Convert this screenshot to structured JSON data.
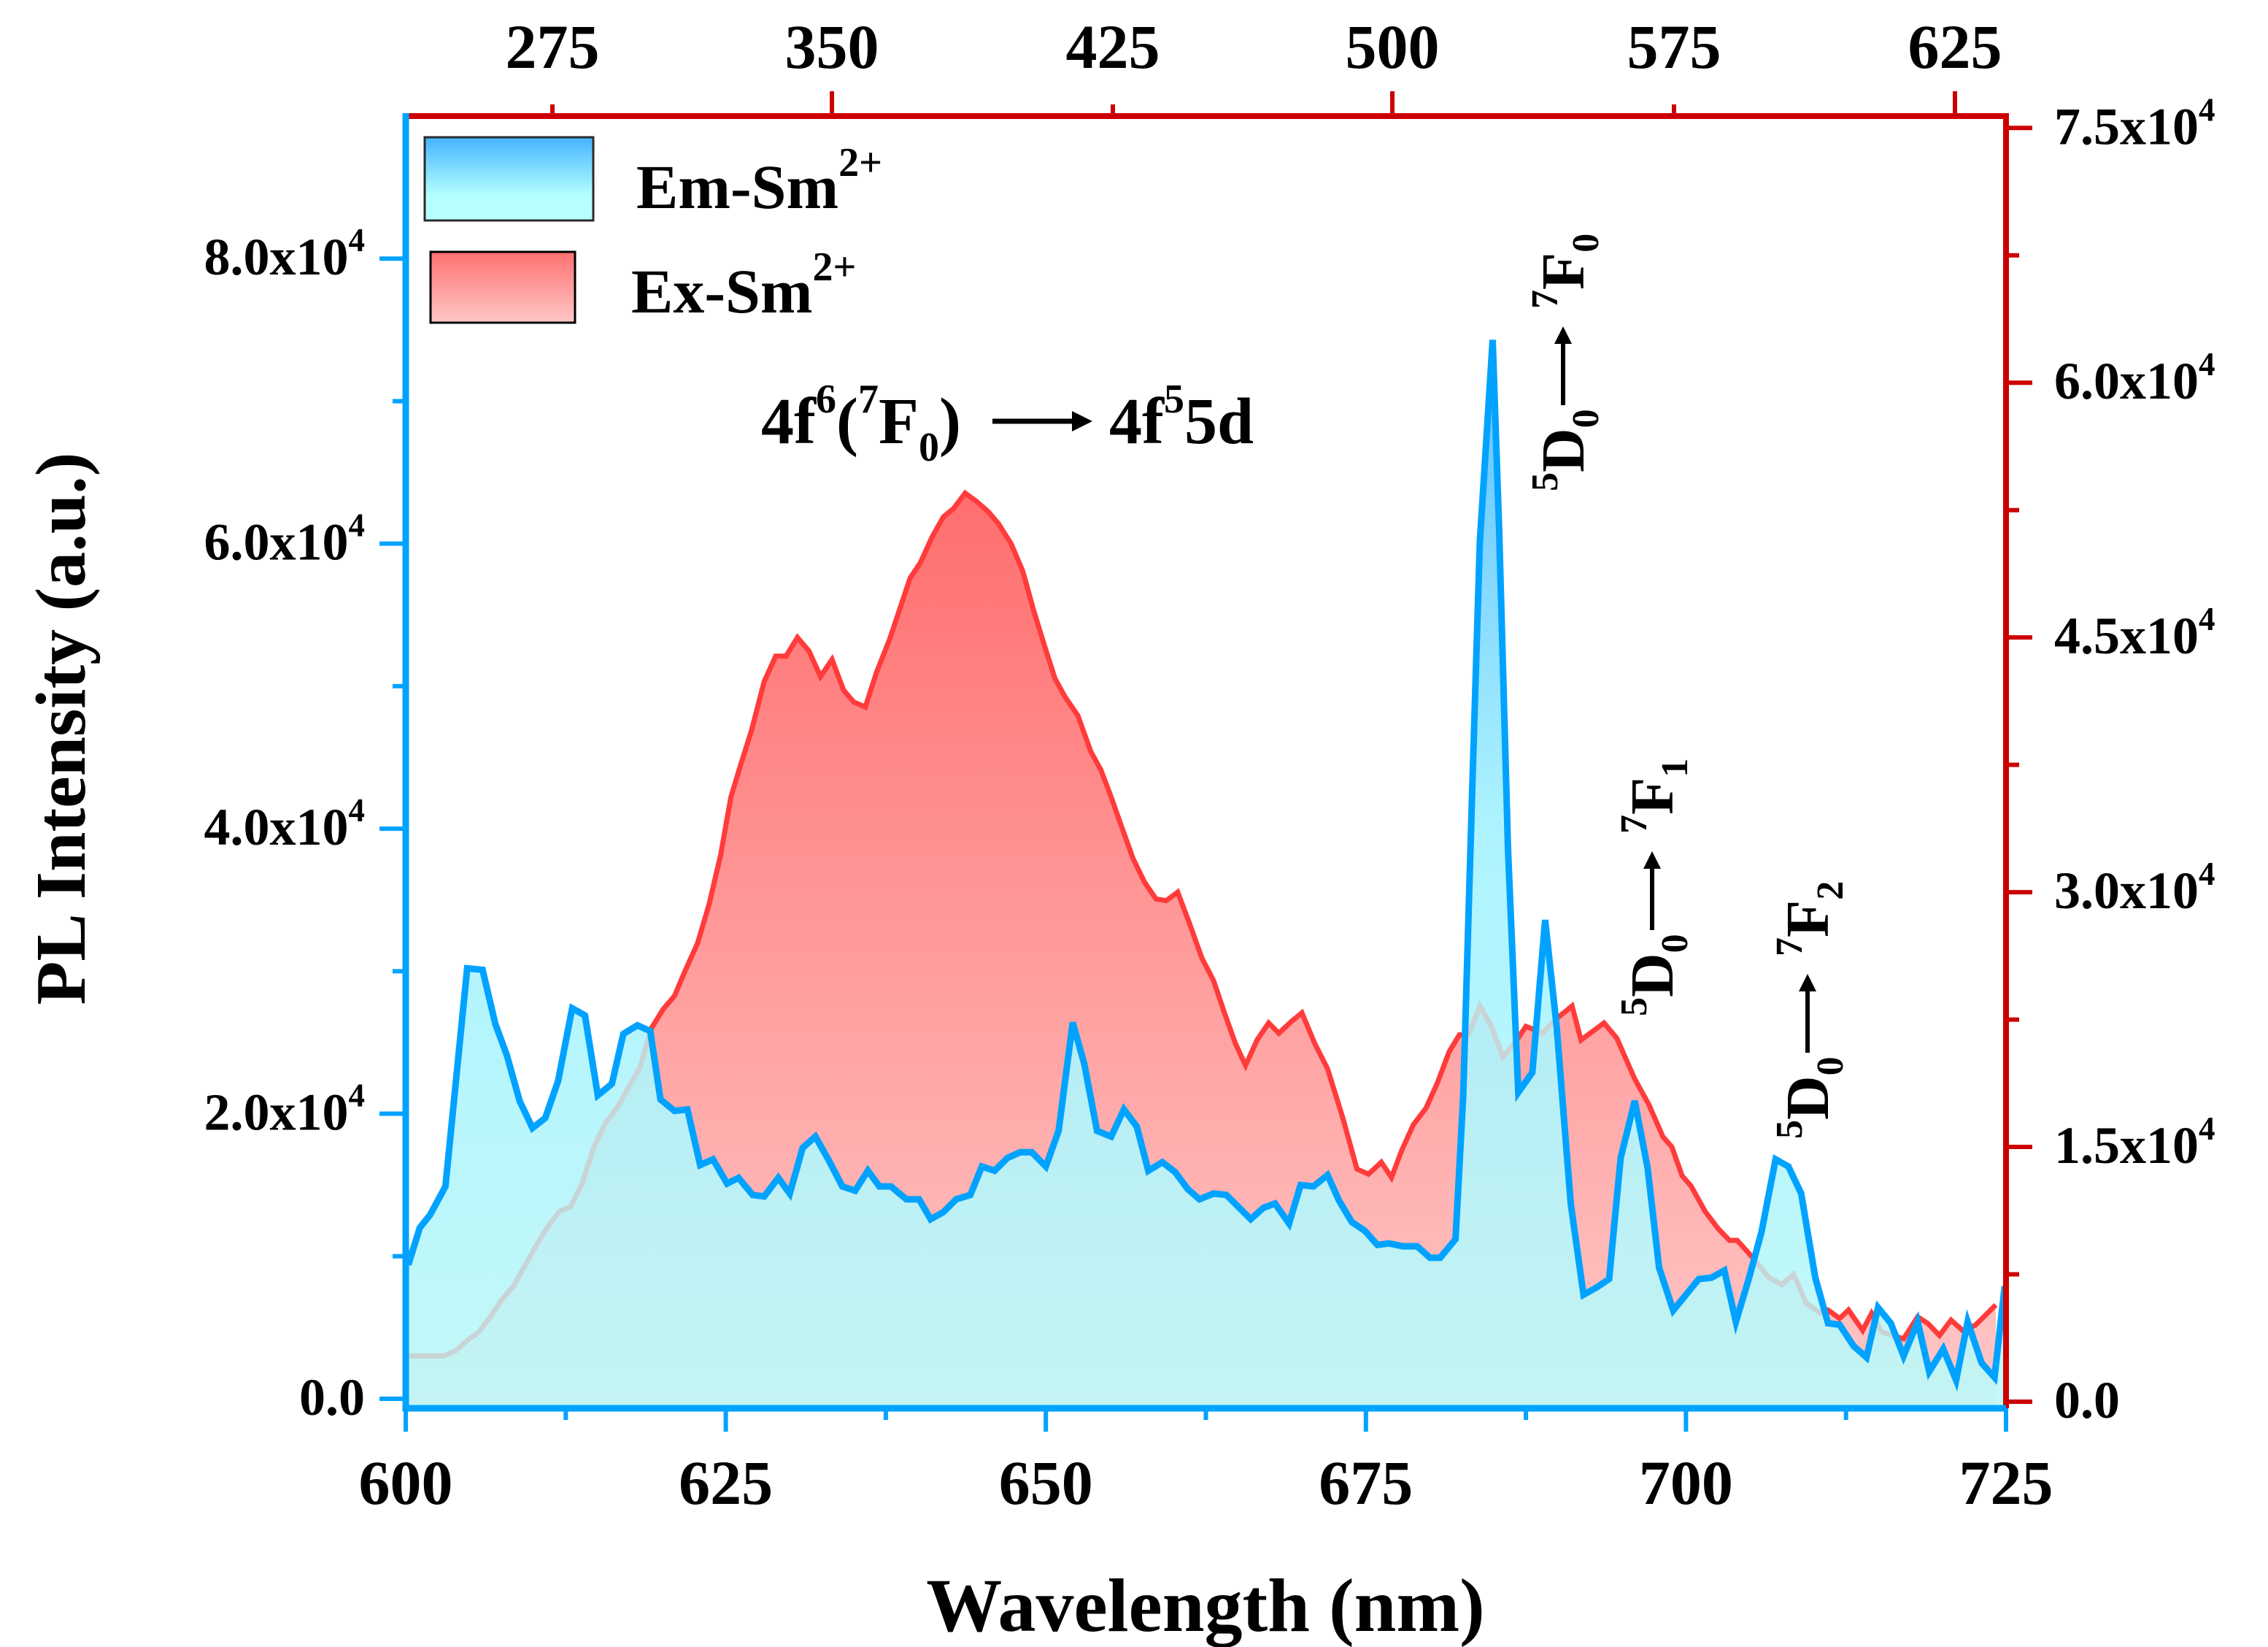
{
  "chart_data": {
    "type": "area",
    "title": "",
    "xlabel": "Wavelength (nm)",
    "ylabel": "PL Intensity (a.u.)",
    "xlim": [
      600,
      725
    ],
    "x_ticks": [
      "600",
      "625",
      "650",
      "675",
      "700",
      "725"
    ],
    "x_tick_values": [
      600,
      625,
      650,
      675,
      700,
      725
    ],
    "x2_ticks": [
      "275",
      "350",
      "425",
      "500",
      "575",
      "625"
    ],
    "y_left": {
      "lim": [
        0,
        90000
      ],
      "ticks": [
        {
          "value": 0,
          "label": "0.0",
          "exp": ""
        },
        {
          "value": 20000,
          "label": "2.0x10",
          "exp": "4"
        },
        {
          "value": 40000,
          "label": "4.0x10",
          "exp": "4"
        },
        {
          "value": 60000,
          "label": "6.0x10",
          "exp": "4"
        },
        {
          "value": 80000,
          "label": "8.0x10",
          "exp": "4"
        }
      ],
      "color": "#00a2ff"
    },
    "y_right": {
      "lim": [
        0,
        75700
      ],
      "ticks": [
        {
          "value": 0,
          "label": "0.0",
          "exp": ""
        },
        {
          "value": 15000,
          "label": "1.5x10",
          "exp": "4"
        },
        {
          "value": 30000,
          "label": "3.0x10",
          "exp": "4"
        },
        {
          "value": 45000,
          "label": "4.5x10",
          "exp": "4"
        },
        {
          "value": 60000,
          "label": "6.0x10",
          "exp": "4"
        },
        {
          "value": 75000,
          "label": "7.5x10",
          "exp": "4"
        }
      ],
      "color": "#cc0000"
    },
    "legend": {
      "position": "top-left",
      "entries": [
        {
          "name": "Em-Sm",
          "sup": "2+",
          "series": "em"
        },
        {
          "name": "Ex-Sm",
          "sup": "2+",
          "series": "ex"
        }
      ]
    },
    "series": [
      {
        "name": "Ex-Sm2+",
        "key": "ex",
        "axis": "right",
        "stroke": "#ff3b3b",
        "fill_top": "#ff6e6e",
        "fill_bottom": "#ffc8c8",
        "x": [
          600.0,
          602.1,
          603.0,
          603.9,
          604.8,
          605.7,
          606.6,
          607.5,
          608.4,
          609.3,
          610.2,
          611.1,
          612.0,
          612.9,
          613.8,
          614.7,
          615.6,
          616.5,
          617.4,
          618.3,
          619.2,
          620.1,
          621.0,
          621.9,
          622.8,
          623.7,
          624.6,
          625.4,
          626.2,
          627.0,
          628.0,
          628.9,
          629.7,
          630.6,
          631.5,
          632.4,
          633.3,
          634.2,
          635.0,
          635.9,
          636.8,
          637.8,
          638.6,
          639.4,
          640.2,
          641.1,
          642.0,
          642.8,
          643.7,
          644.6,
          645.5,
          646.3,
          647.3,
          648.2,
          649.0,
          649.9,
          650.7,
          651.5,
          652.5,
          653.5,
          654.3,
          655.1,
          655.9,
          656.8,
          657.7,
          658.6,
          659.4,
          660.3,
          661.2,
          662.2,
          663.1,
          663.9,
          664.8,
          665.6,
          666.5,
          667.4,
          668.2,
          669.2,
          670.0,
          671.0,
          672.0,
          673.2,
          674.3,
          675.2,
          676.2,
          677.0,
          677.8,
          678.7,
          679.7,
          680.6,
          681.5,
          682.3,
          683.0,
          683.9,
          684.8,
          685.7,
          686.6,
          687.5,
          688.8,
          689.8,
          691.1,
          691.8,
          692.7,
          693.6,
          694.6,
          696.0,
          697.1,
          698.2,
          698.9,
          699.7,
          700.4,
          701.5,
          702.5,
          703.4,
          704.0,
          705.2,
          706.5,
          707.5,
          708.4,
          709.4,
          710.5,
          711.1,
          712.0,
          712.7,
          713.8,
          714.5,
          715.3,
          717.0,
          718.1,
          718.9,
          719.8,
          720.7,
          721.6,
          722.6,
          723.4,
          724.2
        ],
        "y": [
          2700,
          2700,
          2700,
          3000,
          3600,
          4100,
          5000,
          6000,
          6800,
          8000,
          9200,
          10300,
          11200,
          11500,
          12900,
          15000,
          16400,
          17300,
          18500,
          19700,
          22000,
          23100,
          23900,
          25500,
          27000,
          29300,
          32200,
          35600,
          37600,
          39500,
          42400,
          43900,
          43900,
          45000,
          44200,
          42700,
          43700,
          41900,
          41200,
          40900,
          43000,
          44900,
          46700,
          48500,
          49400,
          50900,
          52100,
          52600,
          53500,
          53000,
          52400,
          51700,
          50500,
          48900,
          46700,
          44500,
          42600,
          41500,
          40400,
          38300,
          37200,
          35600,
          33900,
          32000,
          30600,
          29600,
          29500,
          30000,
          28200,
          26100,
          24800,
          23000,
          21100,
          19800,
          21300,
          22300,
          21700,
          22400,
          22900,
          21100,
          19600,
          16700,
          13700,
          13400,
          14100,
          13200,
          14800,
          16300,
          17300,
          18800,
          20600,
          21600,
          21600,
          23300,
          22100,
          20300,
          21100,
          22100,
          21700,
          22500,
          23300,
          21300,
          21800,
          22300,
          21400,
          19000,
          17500,
          15600,
          15000,
          13300,
          12700,
          11200,
          10200,
          9500,
          9500,
          8500,
          7300,
          6900,
          7500,
          5800,
          5200,
          5400,
          4900,
          5400,
          4200,
          5200,
          4100,
          3700,
          5000,
          4600,
          3900,
          4800,
          4200,
          4500,
          5100,
          5700
        ]
      },
      {
        "name": "Em-Sm2+",
        "key": "em",
        "axis": "left",
        "stroke": "#00a2ff",
        "fill_top": "#4db8ff",
        "fill_bottom": "#b8ffff",
        "x": [
          600.2,
          601.1,
          601.9,
          603.1,
          604.8,
          606.0,
          607.0,
          607.9,
          608.9,
          609.9,
          610.9,
          611.9,
          613.0,
          614.0,
          615.0,
          616.1,
          617.0,
          618.1,
          619.1,
          619.9,
          621.0,
          622.0,
          623.0,
          624.0,
          625.1,
          626.0,
          627.1,
          628.0,
          629.1,
          630.0,
          631.0,
          632.0,
          633.0,
          634.1,
          635.1,
          636.1,
          637.0,
          637.9,
          639.1,
          640.1,
          641.0,
          642.0,
          643.0,
          644.1,
          645.0,
          646.0,
          647.0,
          648.0,
          648.9,
          650.0,
          651.0,
          652.1,
          653.0,
          654.0,
          655.1,
          656.1,
          657.1,
          658.0,
          659.1,
          660.1,
          661.1,
          662.0,
          663.1,
          664.1,
          665.0,
          666.0,
          667.0,
          667.9,
          669.0,
          669.9,
          670.9,
          672.0,
          672.9,
          673.9,
          674.9,
          675.9,
          676.8,
          677.9,
          679.0,
          680.0,
          680.8,
          682.0,
          682.6,
          683.3,
          683.9,
          684.9,
          685.4,
          686.1,
          686.9,
          688.0,
          689.0,
          689.9,
          691.0,
          692.0,
          693.0,
          694.0,
          694.9,
          696.0,
          697.0,
          697.9,
          699.0,
          700.0,
          701.0,
          702.0,
          703.0,
          703.9,
          704.9,
          705.9,
          707.0,
          708.0,
          709.0,
          710.1,
          711.1,
          712.0,
          713.1,
          714.1,
          715.0,
          716.0,
          717.0,
          718.1,
          719.0,
          720.1,
          721.1,
          722.0,
          723.1,
          724.1,
          724.9
        ],
        "y": [
          9400,
          12000,
          12900,
          14900,
          30200,
          30100,
          26300,
          24100,
          20900,
          19000,
          19700,
          22300,
          27400,
          26900,
          21300,
          22100,
          25600,
          26200,
          25800,
          21000,
          20200,
          20300,
          16400,
          16800,
          15100,
          15500,
          14300,
          14200,
          15500,
          14400,
          17600,
          18400,
          16800,
          14900,
          14600,
          16000,
          14900,
          14900,
          14000,
          14000,
          12600,
          13100,
          14000,
          14300,
          16300,
          16000,
          16900,
          17300,
          17300,
          16300,
          18800,
          26400,
          23500,
          18800,
          18400,
          20300,
          19100,
          16000,
          16600,
          15900,
          14700,
          14000,
          14400,
          14300,
          13500,
          12600,
          13400,
          13700,
          12300,
          15000,
          14900,
          15700,
          13900,
          12400,
          11800,
          10800,
          10900,
          10700,
          10700,
          9900,
          9900,
          11200,
          21200,
          42600,
          60100,
          74300,
          61100,
          38600,
          21500,
          22900,
          33600,
          26100,
          13700,
          7300,
          7800,
          8400,
          16900,
          20900,
          16200,
          9200,
          6200,
          7300,
          8400,
          8500,
          9000,
          5400,
          8400,
          11700,
          16800,
          16300,
          14400,
          8500,
          5300,
          5200,
          3700,
          2900,
          6400,
          5300,
          3000,
          5400,
          1900,
          3500,
          1300,
          5400,
          2500,
          1500,
          7900
        ]
      }
    ],
    "annotations": [
      {
        "id": "excitation-band",
        "parts": [
          {
            "t": "4f",
            "s": ""
          },
          {
            "t": "6",
            "s": "sup"
          },
          {
            "t": "(",
            "s": ""
          },
          {
            "t": "7",
            "s": "sup"
          },
          {
            "t": "F",
            "s": ""
          },
          {
            "t": "0",
            "s": "sub"
          },
          {
            "t": ")",
            "s": ""
          },
          {
            "t": "ARROW",
            "s": ""
          },
          {
            "t": "4f",
            "s": ""
          },
          {
            "t": "5",
            "s": "sup"
          },
          {
            "t": "5d",
            "s": ""
          }
        ],
        "text": "4f6(7F0)→4f55d"
      },
      {
        "id": "transition-7f0",
        "text": "5D0→7F0",
        "from_sup": "5",
        "from": "D",
        "from_sub": "0",
        "to_sup": "7",
        "to": "F",
        "to_sub": "0"
      },
      {
        "id": "transition-7f1",
        "text": "5D0→7F1",
        "from_sup": "5",
        "from": "D",
        "from_sub": "0",
        "to_sup": "7",
        "to": "F",
        "to_sub": "1"
      },
      {
        "id": "transition-7f2",
        "text": "5D0→7F2",
        "from_sup": "5",
        "from": "D",
        "from_sub": "0",
        "to_sup": "7",
        "to": "F",
        "to_sub": "2"
      }
    ],
    "grid": false
  }
}
